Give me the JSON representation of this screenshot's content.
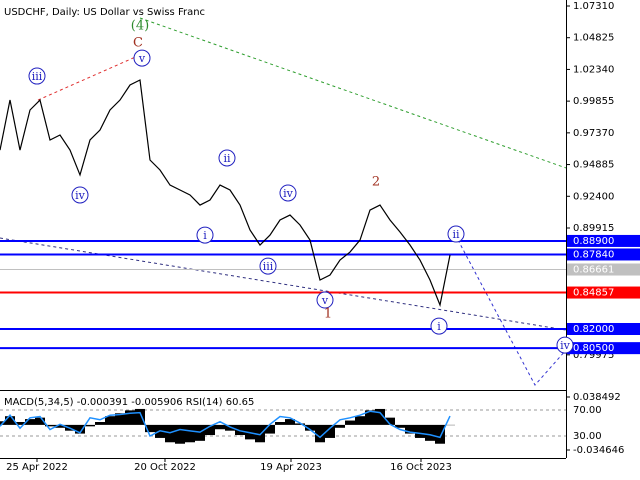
{
  "chart_data": {
    "type": "line",
    "title": "USDCHF, Daily:  US Dollar vs Swiss Franc",
    "xlim": [
      0,
      56.6
    ],
    "xticks": [
      {
        "value": 3.7,
        "label": "25 Apr 2022"
      },
      {
        "value": 16.5,
        "label": "20 Oct 2022"
      },
      {
        "value": 29.1,
        "label": "19 Apr 2023"
      },
      {
        "value": 42.1,
        "label": "16 Oct 2023"
      }
    ],
    "ylim": [
      0.7722,
      1.0778
    ],
    "yticks": [
      {
        "value": 1.0731,
        "label": "1.07310"
      },
      {
        "value": 1.04825,
        "label": "1.04825"
      },
      {
        "value": 1.0234,
        "label": "1.02340"
      },
      {
        "value": 0.99855,
        "label": "0.99855"
      },
      {
        "value": 0.9737,
        "label": "0.97370"
      },
      {
        "value": 0.94885,
        "label": "0.94885"
      },
      {
        "value": 0.924,
        "label": "0.92400"
      },
      {
        "value": 0.89915,
        "label": "0.89915"
      },
      {
        "value": 0.79975,
        "label": "0.79975"
      }
    ],
    "series": [
      {
        "color": "#000000",
        "values": [
          0.9602,
          0.9994,
          0.9602,
          0.9916,
          0.9994,
          0.9681,
          0.972,
          0.9602,
          0.9407,
          0.9681,
          0.9759,
          0.9916,
          0.9994,
          1.0112,
          1.0151,
          0.9524,
          0.9446,
          0.9328,
          0.9289,
          0.925,
          0.9171,
          0.9211,
          0.9328,
          0.9289,
          0.9171,
          0.8976,
          0.8858,
          0.8936,
          0.9054,
          0.9093,
          0.9015,
          0.8897,
          0.8584,
          0.8623,
          0.874,
          0.8803,
          0.8897,
          0.9132,
          0.9171,
          0.9054,
          0.896,
          0.8858,
          0.874,
          0.8584,
          0.8388,
          0.878
        ]
      }
    ],
    "levels": [
      {
        "value": 0.889,
        "label": "0.88900",
        "color": "#0000ff"
      },
      {
        "value": 0.8784,
        "label": "0.87840",
        "color": "#0000ff"
      },
      {
        "value": 0.86661,
        "label": "0.86661",
        "color": "#c0c0c0"
      },
      {
        "value": 0.84857,
        "label": "0.84857",
        "color": "#ff0000"
      },
      {
        "value": 0.82,
        "label": "0.82000",
        "color": "#0000ff"
      },
      {
        "value": 0.805,
        "label": "0.80500",
        "color": "#0000ff"
      }
    ],
    "trendlines": [
      {
        "color": "#2e9e2e",
        "x": [
          14,
          56.6
        ],
        "y": [
          1.0637,
          0.9462
        ]
      },
      {
        "color": "#e03030",
        "x": [
          3.8,
          14
        ],
        "y": [
          0.9994,
          1.0347
        ]
      },
      {
        "color": "#303080",
        "x": [
          0,
          56.6
        ],
        "y": [
          0.8913,
          0.8192
        ]
      },
      {
        "color": "#3030d0",
        "x": [
          45.8,
          53.5,
          56.6
        ],
        "y": [
          0.8897,
          0.7761,
          0.8035
        ]
      }
    ],
    "annotations": [
      {
        "text": "(4)",
        "x": 14,
        "y": 1.0582,
        "color": "#2e8b2e",
        "circled": false
      },
      {
        "text": "C",
        "x": 13.8,
        "y": 1.0449,
        "color": "#a03020",
        "circled": false
      },
      {
        "text": "iii",
        "x": 3.7,
        "y": 1.0182,
        "color": "#2020c0",
        "circled": true
      },
      {
        "text": "v",
        "x": 14.2,
        "y": 1.0323,
        "color": "#2020c0",
        "circled": true
      },
      {
        "text": "iv",
        "x": 8,
        "y": 0.925,
        "color": "#2020c0",
        "circled": true
      },
      {
        "text": "ii",
        "x": 22.7,
        "y": 0.954,
        "color": "#2020c0",
        "circled": true
      },
      {
        "text": "i",
        "x": 20.5,
        "y": 0.8936,
        "color": "#2020c0",
        "circled": true
      },
      {
        "text": "iii",
        "x": 26.8,
        "y": 0.8693,
        "color": "#2020c0",
        "circled": true
      },
      {
        "text": "iv",
        "x": 28.8,
        "y": 0.9266,
        "color": "#2020c0",
        "circled": true
      },
      {
        "text": "v",
        "x": 32.5,
        "y": 0.8427,
        "color": "#2020c0",
        "circled": true
      },
      {
        "text": "1",
        "x": 32.8,
        "y": 0.8325,
        "color": "#a03020",
        "circled": false
      },
      {
        "text": "2",
        "x": 37.6,
        "y": 0.936,
        "color": "#a03020",
        "circled": false
      },
      {
        "text": "i",
        "x": 43.9,
        "y": 0.8223,
        "color": "#2020c0",
        "circled": true
      },
      {
        "text": "ii",
        "x": 45.6,
        "y": 0.8944,
        "color": "#2020c0",
        "circled": true
      },
      {
        "text": "iv",
        "x": 56.5,
        "y": 0.8074,
        "color": "#2020c0",
        "circled": true
      }
    ],
    "indicator": {
      "label": "MACD(5,34,5) -0.000391 -0.005906 RSI(14) 60.65",
      "macd": {
        "color": "#000000",
        "ylim": [
          -0.0457,
          0.0454
        ],
        "yticks": [
          0.038492,
          -0.034646
        ],
        "values": [
          0.005,
          0.012,
          0.004,
          0.008,
          0.01,
          -0.002,
          -0.004,
          -0.008,
          -0.012,
          -0.002,
          0.004,
          0.012,
          0.016,
          0.02,
          0.022,
          -0.01,
          -0.018,
          -0.024,
          -0.026,
          -0.024,
          -0.022,
          -0.014,
          -0.006,
          -0.008,
          -0.014,
          -0.02,
          -0.024,
          -0.012,
          0.004,
          0.008,
          0.002,
          -0.008,
          -0.024,
          -0.018,
          -0.004,
          0.006,
          0.012,
          0.02,
          0.022,
          0.01,
          -0.004,
          -0.012,
          -0.018,
          -0.022,
          -0.026,
          -0.000391
        ]
      },
      "rsi": {
        "color": "#1e90ff",
        "ylim": [
          -3.8,
          97.7
        ],
        "yticks": [
          {
            "value": 70,
            "label": "70.00"
          },
          {
            "value": 30,
            "label": "30.00"
          }
        ],
        "values": [
          45,
          62,
          42,
          58,
          60,
          40,
          48,
          42,
          35,
          58,
          55,
          62,
          63,
          65,
          66,
          30,
          38,
          35,
          40,
          38,
          36,
          45,
          52,
          44,
          38,
          35,
          32,
          48,
          60,
          58,
          50,
          40,
          28,
          42,
          55,
          58,
          62,
          68,
          66,
          48,
          40,
          36,
          34,
          32,
          28,
          60.65
        ]
      }
    }
  }
}
